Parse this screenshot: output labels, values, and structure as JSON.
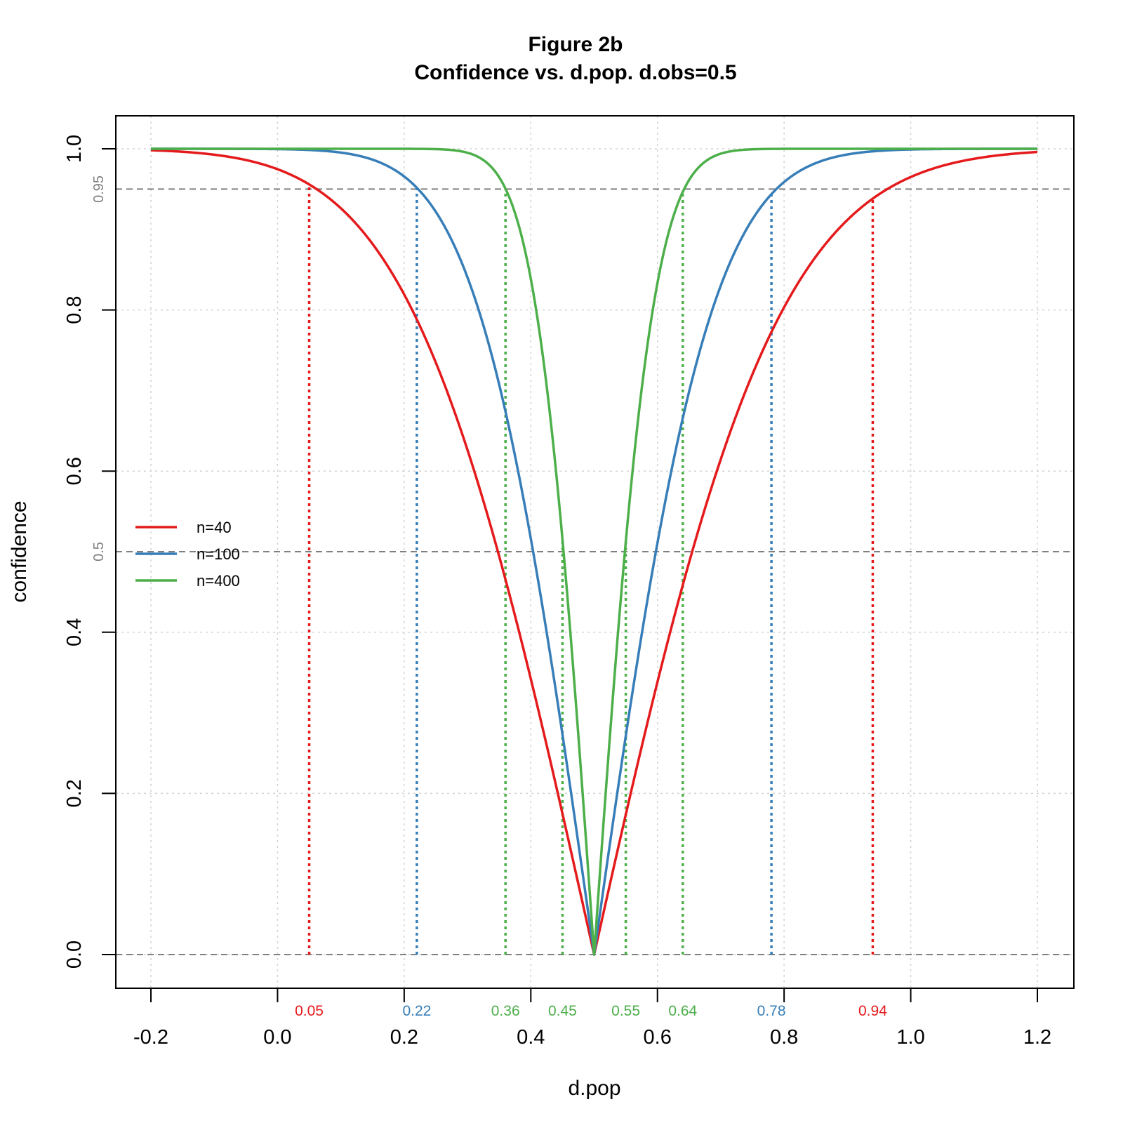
{
  "chart_data": {
    "type": "line",
    "title": "Figure 2b",
    "subtitle": "Confidence vs. d.pop. d.obs=0.5",
    "xlabel": "d.pop",
    "ylabel": "confidence",
    "xlim": [
      -0.2,
      1.2
    ],
    "ylim": [
      0,
      1
    ],
    "x_ticks": [
      "-0.2",
      "0.0",
      "0.2",
      "0.4",
      "0.6",
      "0.8",
      "1.0",
      "1.2"
    ],
    "y_ticks": [
      "0.0",
      "0.2",
      "0.4",
      "0.6",
      "0.8",
      "1.0"
    ],
    "grid": true,
    "legend_position": "left",
    "d_obs": 0.5,
    "reference_lines": [
      {
        "y": 0.95,
        "label": "0.95"
      },
      {
        "y": 0.5,
        "label": "0.5"
      },
      {
        "y": 0.0,
        "label": ""
      }
    ],
    "series": [
      {
        "name": "n=40",
        "color": "#E41A1C",
        "n": 40,
        "markers": [
          {
            "x": 0.05,
            "label": "0.05"
          },
          {
            "x": 0.94,
            "label": "0.94"
          }
        ]
      },
      {
        "name": "n=100",
        "color": "#377EB8",
        "n": 100,
        "markers": [
          {
            "x": 0.22,
            "label": "0.22"
          },
          {
            "x": 0.78,
            "label": "0.78"
          }
        ]
      },
      {
        "name": "n=400",
        "color": "#4DAF4A",
        "n": 400,
        "markers": [
          {
            "x": 0.36,
            "label": "0.36"
          },
          {
            "x": 0.45,
            "label": "0.45"
          },
          {
            "x": 0.55,
            "label": "0.55"
          },
          {
            "x": 0.64,
            "label": "0.64"
          }
        ]
      }
    ]
  }
}
